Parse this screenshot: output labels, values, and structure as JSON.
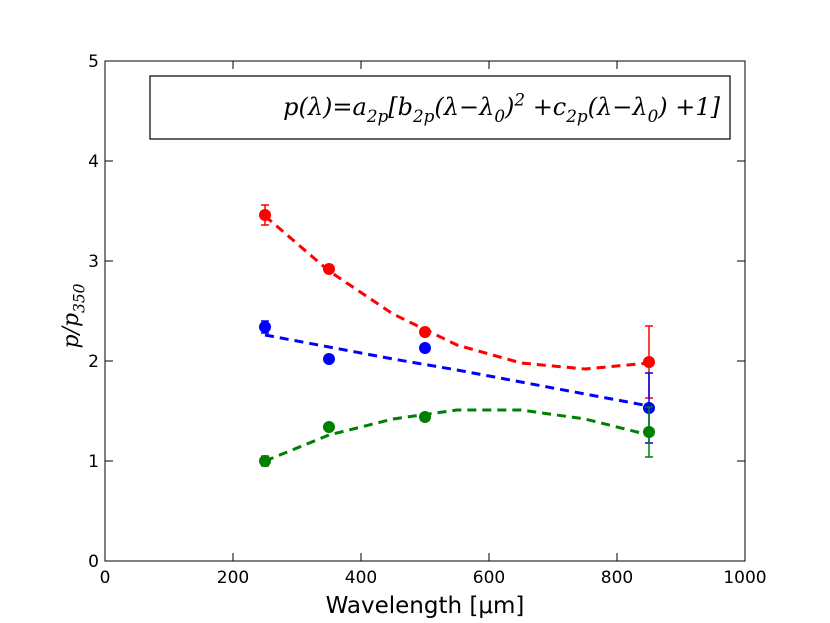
{
  "chart_data": {
    "type": "scatter",
    "annotation": [
      {
        "text": "p(λ)=a"
      },
      {
        "sub": "2p"
      },
      {
        "text": "[b"
      },
      {
        "sub": "2p"
      },
      {
        "text": "(λ−λ"
      },
      {
        "sub": "0"
      },
      {
        "text": ")"
      },
      {
        "sup": "2"
      },
      {
        "text": " +c"
      },
      {
        "sub": "2p"
      },
      {
        "text": "(λ−λ"
      },
      {
        "sub": "0"
      },
      {
        "text": ") +1]"
      }
    ],
    "xlabel": "Wavelength [μm]",
    "ylabel": [
      {
        "text": "p/p"
      },
      {
        "sub": "350"
      }
    ],
    "xlim": [
      0,
      1000
    ],
    "xticks": [
      0,
      200,
      400,
      600,
      800,
      1000
    ],
    "ylim": [
      0,
      5
    ],
    "yticks": [
      0,
      1,
      2,
      3,
      4,
      5
    ],
    "series": [
      {
        "color": "#ff0000",
        "x": [
          250,
          350,
          500,
          850
        ],
        "values": [
          3.46,
          2.92,
          2.29,
          1.99
        ],
        "errors": [
          0.1,
          0.03,
          0.03,
          0.36
        ]
      },
      {
        "color": "#0000ff",
        "x": [
          250,
          350,
          500,
          850
        ],
        "values": [
          2.34,
          2.02,
          2.13,
          1.53
        ],
        "errors": [
          0.06,
          0.02,
          0.03,
          0.35
        ]
      },
      {
        "color": "#008000",
        "x": [
          250,
          350,
          500,
          850
        ],
        "values": [
          1.0,
          1.34,
          1.44,
          1.29
        ],
        "errors": [
          0.05,
          0.02,
          0.02,
          0.25
        ]
      }
    ],
    "fits": [
      {
        "color": "#ff0000",
        "linestyle": "dashed",
        "x": [
          250,
          350,
          450,
          550,
          650,
          750,
          850
        ],
        "values": [
          3.45,
          2.9,
          2.47,
          2.16,
          1.98,
          1.92,
          1.98
        ]
      },
      {
        "color": "#0000ff",
        "linestyle": "dashed",
        "x": [
          250,
          350,
          450,
          550,
          650,
          750,
          850
        ],
        "values": [
          2.26,
          2.14,
          2.02,
          1.91,
          1.79,
          1.67,
          1.55
        ]
      },
      {
        "color": "#008000",
        "linestyle": "dashed",
        "x": [
          250,
          350,
          450,
          550,
          650,
          750,
          850
        ],
        "values": [
          1.0,
          1.26,
          1.42,
          1.51,
          1.51,
          1.42,
          1.26
        ]
      }
    ]
  }
}
